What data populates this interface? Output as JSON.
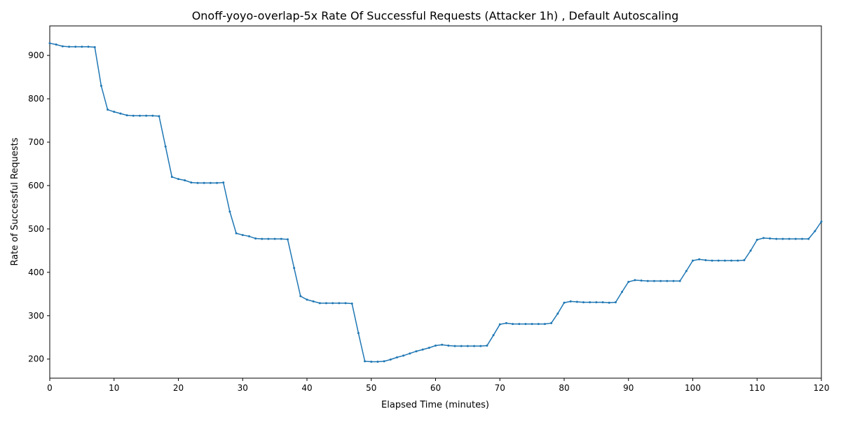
{
  "chart_data": {
    "type": "line",
    "title": "Onoff-yoyo-overlap-5x Rate Of Successful Requests (Attacker 1h) , Default Autoscaling",
    "x_label": "Elapsed Time (minutes)",
    "y_label": "Rate of Successful Requests",
    "x": [
      0,
      1,
      2,
      3,
      4,
      5,
      6,
      7,
      8,
      9,
      10,
      11,
      12,
      13,
      14,
      15,
      16,
      17,
      18,
      19,
      20,
      21,
      22,
      23,
      24,
      25,
      26,
      27,
      28,
      29,
      30,
      31,
      32,
      33,
      34,
      35,
      36,
      37,
      38,
      39,
      40,
      41,
      42,
      43,
      44,
      45,
      46,
      47,
      48,
      49,
      50,
      51,
      52,
      53,
      54,
      55,
      56,
      57,
      58,
      59,
      60,
      61,
      62,
      63,
      64,
      65,
      66,
      67,
      68,
      69,
      70,
      71,
      72,
      73,
      74,
      75,
      76,
      77,
      78,
      79,
      80,
      81,
      82,
      83,
      84,
      85,
      86,
      87,
      88,
      89,
      90,
      91,
      92,
      93,
      94,
      95,
      96,
      97,
      98,
      99,
      100,
      101,
      102,
      103,
      104,
      105,
      106,
      107,
      108,
      109,
      110,
      111,
      112,
      113,
      114,
      115,
      116,
      117,
      118,
      119,
      120
    ],
    "series": [
      {
        "name": "Rate of Successful Requests",
        "color": "#1f77b4",
        "values": [
          928,
          925,
          921,
          920,
          920,
          920,
          920,
          919,
          830,
          775,
          770,
          766,
          762,
          761,
          761,
          761,
          761,
          760,
          690,
          620,
          615,
          612,
          607,
          606,
          606,
          606,
          606,
          607,
          540,
          490,
          486,
          483,
          478,
          477,
          477,
          477,
          477,
          476,
          410,
          345,
          337,
          333,
          329,
          329,
          329,
          329,
          329,
          328,
          260,
          195,
          194,
          194,
          195,
          199,
          204,
          208,
          213,
          218,
          222,
          226,
          231,
          233,
          231,
          230,
          230,
          230,
          230,
          230,
          231,
          255,
          280,
          283,
          281,
          281,
          281,
          281,
          281,
          281,
          283,
          305,
          330,
          333,
          332,
          331,
          331,
          331,
          331,
          330,
          331,
          355,
          378,
          382,
          381,
          380,
          380,
          380,
          380,
          380,
          380,
          403,
          427,
          430,
          428,
          427,
          427,
          427,
          427,
          427,
          428,
          450,
          475,
          479,
          478,
          477,
          477,
          477,
          477,
          477,
          477,
          495,
          517
        ]
      }
    ],
    "xlim": [
      0,
      120
    ],
    "ylim": [
      156,
      968
    ],
    "xticks": [
      0,
      10,
      20,
      30,
      40,
      50,
      60,
      70,
      80,
      90,
      100,
      110,
      120
    ],
    "yticks": [
      200,
      300,
      400,
      500,
      600,
      700,
      800,
      900
    ]
  }
}
